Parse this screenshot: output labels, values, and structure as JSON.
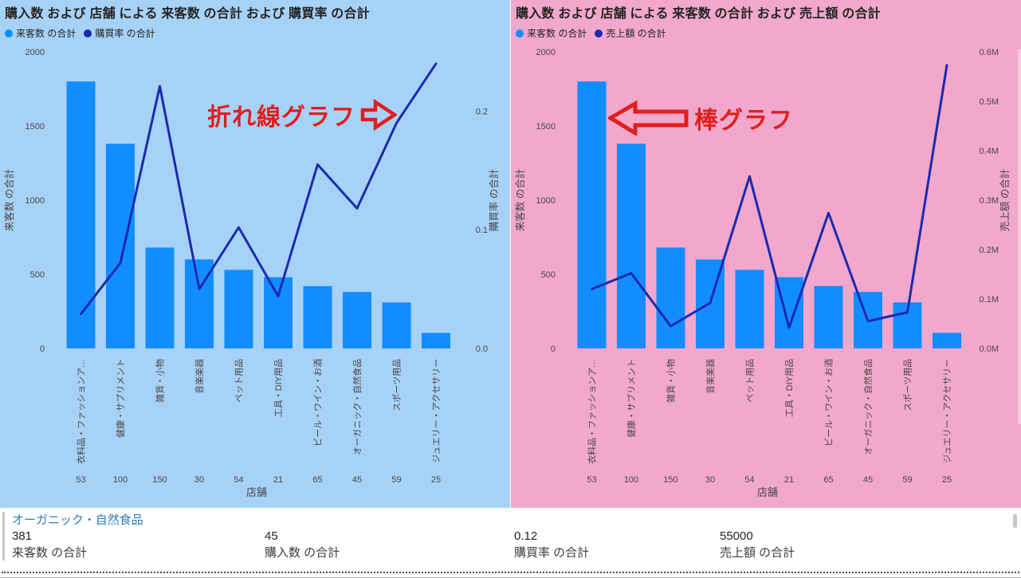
{
  "colors": {
    "bar": "#118DFF",
    "line": "#1B2AAE",
    "annotation_red": "#E01E1E",
    "axis_text": "#484644",
    "left_panel_bg": "#A7D2F7",
    "right_panel_bg": "#F1A8CC",
    "summary_header_blue": "#2E7CB8"
  },
  "chart_data": [
    {
      "type": "combo-bar-line",
      "title": "購入数 および 店舗 による 来客数 の合計 および 購買率 の合計",
      "legend": [
        "来客数 の合計",
        "購買率 の合計"
      ],
      "categories": [
        "衣料品・ファッションア…",
        "健康・サプリメント",
        "雑貨・小物",
        "音楽楽器",
        "ペット用品",
        "工具・DIY用品",
        "ビール・ワイン・お酒",
        "オーガニック・自然食品",
        "スポーツ用品",
        "ジュエリー・アクセサリー"
      ],
      "purchase_counts": [
        53,
        100,
        150,
        30,
        54,
        21,
        65,
        45,
        59,
        25
      ],
      "bar_series_name": "来客数 の合計",
      "bar_values": [
        1800,
        1380,
        680,
        600,
        530,
        480,
        420,
        381,
        310,
        105
      ],
      "line_series_name": "購買率 の合計",
      "line_values": [
        0.029,
        0.072,
        0.221,
        0.05,
        0.102,
        0.044,
        0.155,
        0.118,
        0.19,
        0.24
      ],
      "left_axis": {
        "title": "来客数 の合計",
        "max": 2000,
        "ticks": [
          {
            "v": 0,
            "label": "0"
          },
          {
            "v": 500,
            "label": "500"
          },
          {
            "v": 1000,
            "label": "1000"
          },
          {
            "v": 1500,
            "label": "1500"
          },
          {
            "v": 2000,
            "label": "2000"
          }
        ]
      },
      "right_axis": {
        "title": "購買率 の合計",
        "max": 0.25,
        "ticks": [
          {
            "v": 0.2,
            "label": "0.2"
          },
          {
            "v": 0.1,
            "label": "0.1"
          },
          {
            "v": 0,
            "label": "0.0"
          }
        ]
      },
      "xlabel": "店舗",
      "background": "#A7D2F7",
      "grid": false,
      "legend_position": "top-left"
    },
    {
      "type": "combo-bar-line",
      "title": "購入数 および 店舗 による 来客数 の合計 および 売上額 の合計",
      "legend": [
        "来客数 の合計",
        "売上額 の合計"
      ],
      "categories": [
        "衣料品・ファッションア…",
        "健康・サプリメント",
        "雑貨・小物",
        "音楽楽器",
        "ペット用品",
        "工具・DIY用品",
        "ビール・ワイン・お酒",
        "オーガニック・自然食品",
        "スポーツ用品",
        "ジュエリー・アクセサリー"
      ],
      "purchase_counts": [
        53,
        100,
        150,
        30,
        54,
        21,
        65,
        45,
        59,
        25
      ],
      "bar_series_name": "来客数 の合計",
      "bar_values": [
        1800,
        1380,
        680,
        600,
        530,
        480,
        420,
        381,
        310,
        105
      ],
      "line_series_name": "売上額 の合計",
      "line_values": [
        120000,
        152000,
        45000,
        92000,
        348000,
        42000,
        274000,
        55000,
        73000,
        573000
      ],
      "left_axis": {
        "title": "来客数 の合計",
        "max": 2000,
        "ticks": [
          {
            "v": 0,
            "label": "0"
          },
          {
            "v": 500,
            "label": "500"
          },
          {
            "v": 1000,
            "label": "1000"
          },
          {
            "v": 1500,
            "label": "1500"
          },
          {
            "v": 2000,
            "label": "2000"
          }
        ]
      },
      "right_axis": {
        "title": "売上額 の合計",
        "max": 600000,
        "ticks": [
          {
            "v": 600000,
            "label": "0.6M"
          },
          {
            "v": 500000,
            "label": "0.5M"
          },
          {
            "v": 400000,
            "label": "0.4M"
          },
          {
            "v": 300000,
            "label": "0.3M"
          },
          {
            "v": 200000,
            "label": "0.2M"
          },
          {
            "v": 100000,
            "label": "0.1M"
          },
          {
            "v": 0,
            "label": "0.0M"
          }
        ]
      },
      "xlabel": "店舗",
      "background": "#F1A8CC",
      "grid": false,
      "legend_position": "top-left"
    }
  ],
  "annotations": {
    "line_chart": {
      "text": "折れ線グラフ",
      "arrow": "right"
    },
    "bar_chart": {
      "text": "棒グラフ",
      "arrow": "left"
    }
  },
  "summary": {
    "category": "オーガニック・自然食品",
    "cards": [
      {
        "value": "381",
        "label": "来客数 の合計"
      },
      {
        "value": "45",
        "label": "購入数 の合計"
      },
      {
        "value": "0.12",
        "label": "購買率 の合計"
      },
      {
        "value": "55000",
        "label": "売上額 の合計"
      }
    ]
  }
}
